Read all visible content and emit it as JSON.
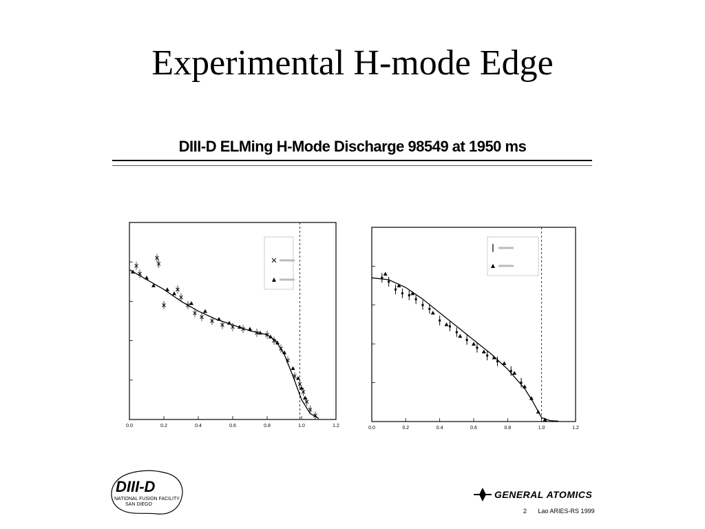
{
  "slide": {
    "title": "Experimental H-mode Edge"
  },
  "figure": {
    "title": "DIII-D ELMing H-Mode Discharge 98549 at 1950 ms"
  },
  "logos": {
    "diii_d": "DIII-D",
    "diii_d_sub1": "NATIONAL FUSION FACILITY",
    "diii_d_sub2": "SAN DIEGO",
    "general_atomics": "GENERAL ATOMICS"
  },
  "footer": {
    "page": "2",
    "conference": "Lao ARIES-RS 1999"
  },
  "chart_data": [
    {
      "type": "scatter",
      "title": "",
      "xlabel": "",
      "ylabel": "",
      "xlim": [
        0.0,
        1.2
      ],
      "ylim": [
        0,
        10
      ],
      "x_ticks": [
        0.0,
        0.2,
        0.4,
        0.6,
        0.8,
        1.0,
        1.2
      ],
      "x_tick_labels": [
        "0.0",
        "0.2",
        "0.4",
        "0.6",
        "0.8",
        "1.0",
        "1.2"
      ],
      "separatrix_x": 0.99,
      "legend_title": "",
      "series": [
        {
          "name": "",
          "marker": "x",
          "x": [
            0.04,
            0.06,
            0.16,
            0.17,
            0.2,
            0.28,
            0.3,
            0.34,
            0.38,
            0.42,
            0.48,
            0.54,
            0.6,
            0.66,
            0.74,
            0.8,
            0.84,
            0.88,
            0.92,
            0.96,
            0.99,
            1.01,
            1.03,
            1.05,
            1.08
          ],
          "y": [
            7.8,
            7.4,
            8.2,
            7.9,
            5.8,
            6.6,
            6.2,
            5.8,
            5.4,
            5.2,
            5.0,
            4.8,
            4.7,
            4.6,
            4.4,
            4.3,
            4.0,
            3.6,
            3.0,
            2.2,
            1.8,
            1.4,
            0.9,
            0.5,
            0.2
          ]
        },
        {
          "name": "",
          "marker": "triangle",
          "x": [
            0.02,
            0.1,
            0.14,
            0.22,
            0.26,
            0.36,
            0.44,
            0.52,
            0.58,
            0.64,
            0.7,
            0.76,
            0.82,
            0.86,
            0.9,
            0.95,
            0.98,
            1.0,
            1.02
          ],
          "y": [
            7.5,
            7.2,
            6.8,
            6.6,
            6.4,
            5.9,
            5.5,
            5.1,
            4.9,
            4.7,
            4.6,
            4.4,
            4.2,
            3.9,
            3.4,
            2.6,
            2.1,
            1.6,
            1.1
          ]
        }
      ],
      "fit": {
        "x": [
          0.0,
          0.1,
          0.2,
          0.3,
          0.4,
          0.5,
          0.6,
          0.7,
          0.8,
          0.85,
          0.9,
          0.95,
          1.0,
          1.05,
          1.1
        ],
        "y": [
          7.6,
          7.1,
          6.6,
          6.0,
          5.5,
          5.1,
          4.8,
          4.5,
          4.3,
          4.0,
          3.3,
          2.2,
          1.0,
          0.3,
          0.05
        ]
      }
    },
    {
      "type": "scatter",
      "title": "",
      "xlabel": "",
      "ylabel": "",
      "xlim": [
        0.0,
        1.2
      ],
      "ylim": [
        0,
        10
      ],
      "x_ticks": [
        0.0,
        0.2,
        0.4,
        0.6,
        0.8,
        1.0,
        1.2
      ],
      "x_tick_labels": [
        "0.0",
        "0.2",
        "0.4",
        "0.6",
        "0.8",
        "1.0",
        "1.2"
      ],
      "separatrix_x": 1.0,
      "series": [
        {
          "name": "",
          "marker": "bar",
          "x": [
            0.06,
            0.1,
            0.14,
            0.18,
            0.22,
            0.26,
            0.3,
            0.34,
            0.4,
            0.46,
            0.5,
            0.56,
            0.62,
            0.68,
            0.74,
            0.82,
            0.88
          ],
          "y": [
            7.4,
            7.2,
            6.8,
            6.6,
            6.5,
            6.3,
            6.0,
            5.8,
            5.2,
            4.9,
            4.6,
            4.2,
            3.8,
            3.4,
            3.1,
            2.6,
            2.0
          ]
        },
        {
          "name": "",
          "marker": "triangle",
          "x": [
            0.08,
            0.16,
            0.24,
            0.36,
            0.44,
            0.52,
            0.6,
            0.66,
            0.72,
            0.78,
            0.84,
            0.9,
            0.94,
            0.98,
            1.02
          ],
          "y": [
            7.6,
            7.0,
            6.6,
            5.6,
            5.0,
            4.4,
            4.0,
            3.6,
            3.3,
            3.0,
            2.5,
            1.8,
            1.2,
            0.5,
            0.1
          ]
        }
      ],
      "fit": {
        "x": [
          0.0,
          0.1,
          0.2,
          0.3,
          0.4,
          0.5,
          0.6,
          0.7,
          0.8,
          0.9,
          0.95,
          1.0,
          1.05,
          1.1
        ],
        "y": [
          7.4,
          7.3,
          6.9,
          6.3,
          5.6,
          4.9,
          4.2,
          3.5,
          2.7,
          1.7,
          1.0,
          0.2,
          0.05,
          0.02
        ]
      }
    }
  ]
}
